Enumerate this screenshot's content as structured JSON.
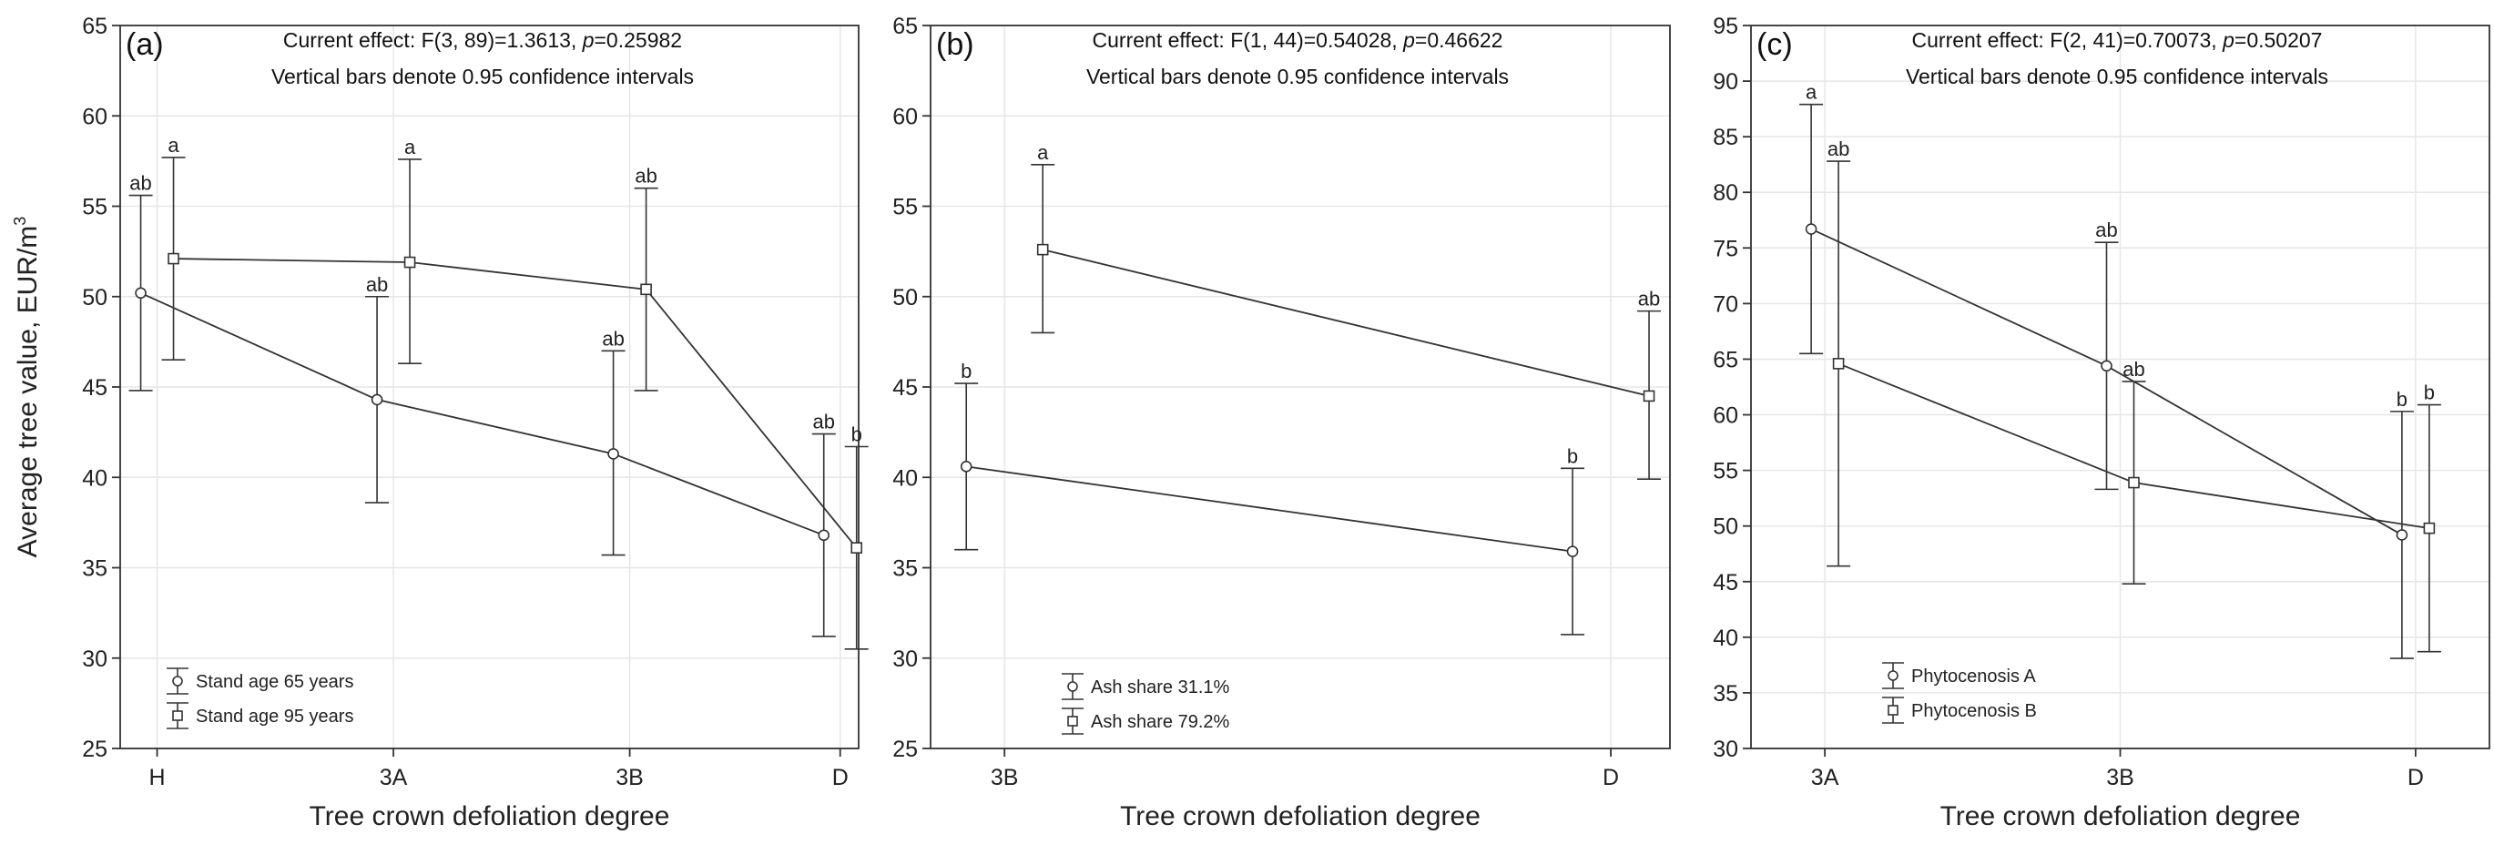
{
  "shared": {
    "ylabel": "Average tree value, EUR/m",
    "ylabel_sup": "3",
    "xlabel": "Tree crown defoliation degree",
    "ci_note": "Vertical bars denote 0.95 confidence intervals"
  },
  "chart_data": [
    {
      "type": "line",
      "panel": "(a)",
      "effect_prefix": "Current effect: F(3, 89)=1.3613, ",
      "p_label": "p",
      "p_value": "=0.25982",
      "categories": [
        "H",
        "3A",
        "3B",
        "D"
      ],
      "ylim": [
        25,
        65
      ],
      "yticks": [
        25,
        30,
        35,
        40,
        45,
        50,
        55,
        60,
        65
      ],
      "series": [
        {
          "name": "Stand age 65 years",
          "marker": "circle",
          "values": [
            50.2,
            44.3,
            41.3,
            36.8
          ],
          "lower": [
            44.8,
            38.6,
            35.7,
            31.2
          ],
          "upper": [
            55.6,
            50.0,
            47.0,
            42.4
          ],
          "letters": [
            "ab",
            "ab",
            "ab",
            "ab"
          ]
        },
        {
          "name": "Stand age 95 years",
          "marker": "square",
          "values": [
            52.1,
            51.9,
            50.4,
            36.1
          ],
          "lower": [
            46.5,
            46.3,
            44.8,
            30.5
          ],
          "upper": [
            57.7,
            57.6,
            56.0,
            41.7
          ],
          "letters": [
            "a",
            "a",
            "ab",
            "b"
          ]
        }
      ]
    },
    {
      "type": "line",
      "panel": "(b)",
      "effect_prefix": "Current effect: F(1, 44)=0.54028, ",
      "p_label": "p",
      "p_value": "=0.46622",
      "categories": [
        "3B",
        "D"
      ],
      "ylim": [
        25,
        65
      ],
      "yticks": [
        25,
        30,
        35,
        40,
        45,
        50,
        55,
        60,
        65
      ],
      "series": [
        {
          "name": "Ash share 31.1%",
          "marker": "circle",
          "values": [
            40.6,
            35.9
          ],
          "lower": [
            36.0,
            31.3
          ],
          "upper": [
            45.2,
            40.5
          ],
          "letters": [
            "b",
            "b"
          ]
        },
        {
          "name": "Ash share 79.2%",
          "marker": "square",
          "values": [
            52.6,
            44.5
          ],
          "lower": [
            48.0,
            39.9
          ],
          "upper": [
            57.3,
            49.2
          ],
          "letters": [
            "a",
            "ab"
          ]
        }
      ]
    },
    {
      "type": "line",
      "panel": "(c)",
      "effect_prefix": "Current effect: F(2, 41)=0.70073, ",
      "p_label": "p",
      "p_value": "=0.50207",
      "categories": [
        "3A",
        "3B",
        "D"
      ],
      "ylim": [
        30,
        95
      ],
      "yticks": [
        30,
        35,
        40,
        45,
        50,
        55,
        60,
        65,
        70,
        75,
        80,
        85,
        90,
        95
      ],
      "series": [
        {
          "name": "Phytocenosis A",
          "marker": "circle",
          "values": [
            76.7,
            64.4,
            49.2
          ],
          "lower": [
            65.5,
            53.3,
            38.1
          ],
          "upper": [
            87.9,
            75.5,
            60.3
          ],
          "letters": [
            "a",
            "ab",
            "b"
          ]
        },
        {
          "name": "Phytocenosis B",
          "marker": "square",
          "values": [
            64.6,
            53.9,
            49.8
          ],
          "lower": [
            46.4,
            44.8,
            38.7
          ],
          "upper": [
            82.8,
            63.0,
            60.9
          ],
          "letters": [
            "ab",
            "ab",
            "b"
          ]
        }
      ]
    }
  ]
}
